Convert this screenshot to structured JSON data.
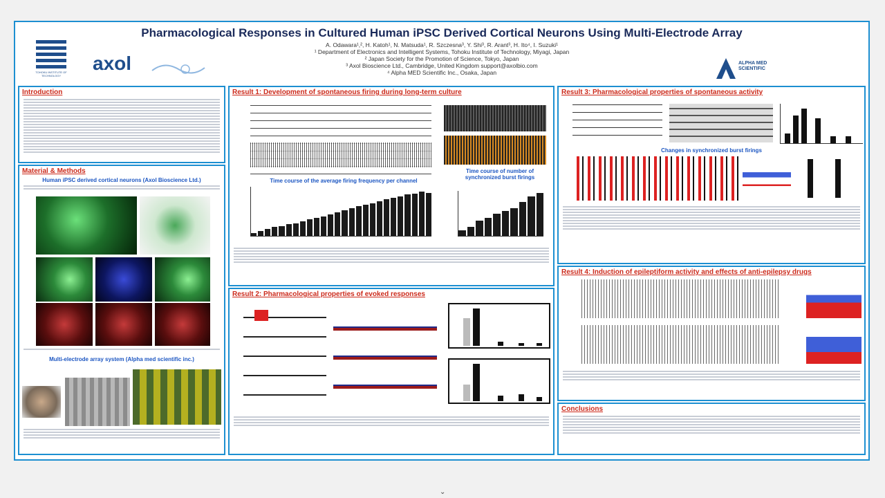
{
  "poster": {
    "title": "Pharmacological Responses in Cultured Human iPSC Derived Cortical Neurons Using Multi-Electrode Array",
    "authors": "A. Odawara¹,², H. Katoh¹, N. Matsuda¹, R. Szczesna³, Y. Shi³, R. Arant³, H. Ito⁴, I. Suzuki¹",
    "affiliation1": "¹ Department of Electronics and Intelligent Systems, Tohoku Institute of Technology, Miyagi, Japan",
    "affiliation2": "² Japan Society for the Promotion of Science, Tokyo, Japan",
    "affiliation3": "³ Axol Bioscience Ltd., Cambridge, United Kingdom support@axolbio.com",
    "affiliation4": "⁴ Alpha MED Scientific Inc., Osaka, Japan"
  },
  "logos": {
    "tohoku": "TOHOKU INSTITUTE OF TECHNOLOGY",
    "axol": "axol",
    "alpha": "ALPHA MED SCIENTIFIC"
  },
  "sections": {
    "introduction": "Introduction",
    "methods": "Material & Methods",
    "methods_sub1": "Human iPSC derived cortical neurons (Axol Bioscience Ltd.)",
    "methods_sub2": "Multi-electrode array system (Alpha med scientific inc.)",
    "result1": "Result 1: Development of spontaneous firing during long-term culture",
    "result1_chart1": "Time course of the average firing frequency per channel",
    "result1_chart2": "Time course of number of synchronized burst firings",
    "result2": "Result 2: Pharmacological properties of evoked responses",
    "result3": "Result 3: Pharmacological properties of spontaneous activity",
    "result3_sub": "Changes in synchronized burst firings",
    "result4": "Result 4: Induction of epileptiform activity and effects of anti-epilepsy drugs",
    "conclusions": "Conclusions"
  }
}
